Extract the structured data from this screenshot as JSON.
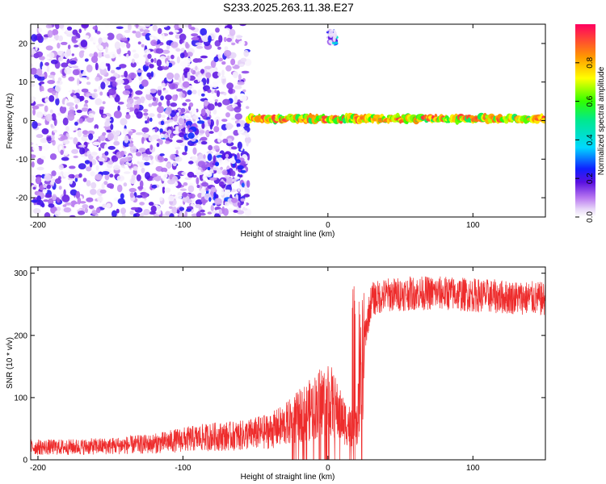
{
  "title": "S233.2025.263.11.38.E27",
  "colors": {
    "snr_line": "#ee2c2c",
    "frame": "#000000",
    "background": "#ffffff"
  },
  "chart_data": [
    {
      "type": "heatmap",
      "name": "spectrogram",
      "xlabel": "Height of straight line (km)",
      "ylabel": "Frequency (Hz)",
      "xlim": [
        -205,
        150
      ],
      "ylim": [
        -25,
        25
      ],
      "x_ticks": [
        -200,
        -100,
        0,
        100
      ],
      "x_tick_labels": [
        "-200",
        "-100",
        "0",
        "100"
      ],
      "y_ticks": [
        -20,
        -10,
        0,
        10,
        20
      ],
      "y_tick_labels": [
        "-20",
        "-10",
        "0",
        "10",
        "20"
      ],
      "colorbar": {
        "label": "Normalized spectral amplitude",
        "range": [
          0.0,
          1.0
        ],
        "ticks": [
          0.0,
          0.2,
          0.4,
          0.6,
          0.8
        ],
        "tick_labels": [
          "0.0",
          "0.2",
          "0.4",
          "0.6",
          "0.8"
        ],
        "colormap": "rainbow"
      },
      "features": [
        {
          "description": "broadband noise",
          "x_range": [
            -205,
            -55
          ],
          "y_range": [
            -25,
            25
          ],
          "amplitude": 0.25
        },
        {
          "description": "blob",
          "x_range": [
            -115,
            -85
          ],
          "y_range": [
            -6,
            3
          ],
          "amplitude": 0.3
        },
        {
          "description": "blob",
          "x_range": [
            -90,
            -58
          ],
          "y_range": [
            -22,
            -9
          ],
          "amplitude": 0.3
        },
        {
          "description": "spot",
          "x_range": [
            1,
            5
          ],
          "y_range": [
            20,
            23
          ],
          "amplitude": 0.45
        },
        {
          "description": "tone",
          "x_range": [
            -55,
            150
          ],
          "y_center": 0.5,
          "amplitude": 0.95
        }
      ]
    },
    {
      "type": "line",
      "name": "snr",
      "xlabel": "Height of straight line (km)",
      "ylabel": "SNR (10 * v/v)",
      "xlim": [
        -205,
        150
      ],
      "ylim": [
        0,
        310
      ],
      "x_ticks": [
        -200,
        -100,
        0,
        100
      ],
      "x_tick_labels": [
        "-200",
        "-100",
        "0",
        "100"
      ],
      "y_ticks": [
        0,
        100,
        200,
        300
      ],
      "y_tick_labels": [
        "0",
        "100",
        "200",
        "300"
      ],
      "series": [
        {
          "name": "SNR",
          "x": [
            -205,
            -180,
            -150,
            -120,
            -100,
            -80,
            -60,
            -40,
            -30,
            -20,
            -10,
            0,
            5,
            10,
            15,
            20,
            23,
            27,
            30,
            40,
            60,
            80,
            100,
            120,
            140,
            150
          ],
          "y": [
            22,
            22,
            24,
            28,
            35,
            40,
            42,
            50,
            60,
            75,
            90,
            110,
            90,
            70,
            60,
            55,
            160,
            220,
            258,
            265,
            268,
            268,
            265,
            262,
            260,
            258
          ]
        }
      ]
    }
  ]
}
